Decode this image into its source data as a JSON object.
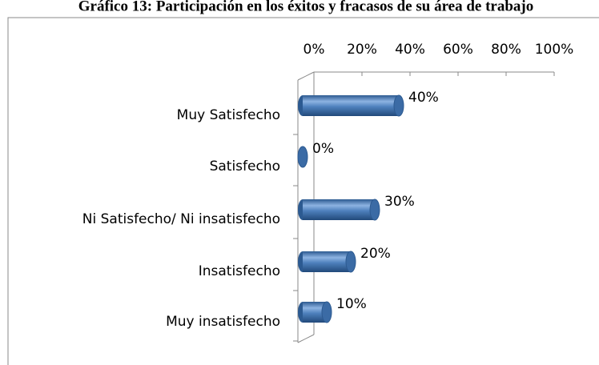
{
  "chart_data": {
    "type": "bar",
    "orientation": "horizontal",
    "title": "Gráfico 13: Participación en los éxitos y fracasos de su área de trabajo",
    "categories": [
      "Muy Satisfecho",
      "Satisfecho",
      "Ni Satisfecho/ Ni insatisfecho",
      "Insatisfecho",
      "Muy insatisfecho"
    ],
    "values": [
      40,
      0,
      30,
      20,
      10
    ],
    "value_labels": [
      "40%",
      "0%",
      "30%",
      "20%",
      "10%"
    ],
    "color": "#4f81bd",
    "xlim": [
      0,
      100
    ],
    "xticks": [
      {
        "value": 0,
        "label": "0%"
      },
      {
        "value": 20,
        "label": "20%"
      },
      {
        "value": 40,
        "label": "40%"
      },
      {
        "value": 60,
        "label": "60%"
      },
      {
        "value": 80,
        "label": "80%"
      },
      {
        "value": 100,
        "label": "100%"
      }
    ],
    "grid": false
  }
}
